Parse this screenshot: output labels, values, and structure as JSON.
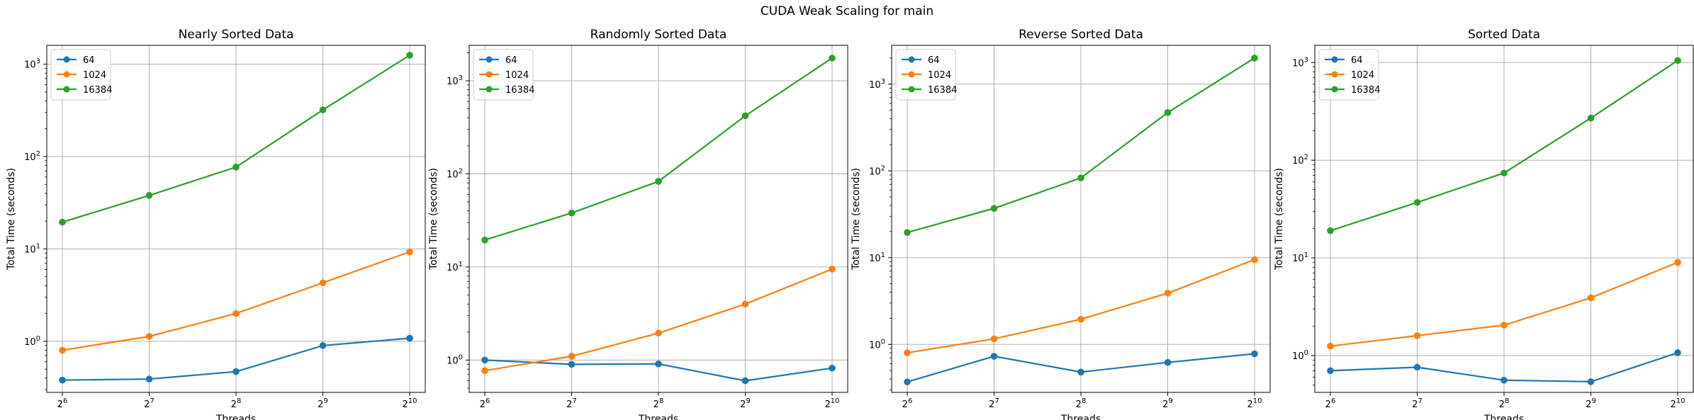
{
  "figure": {
    "suptitle": "CUDA Weak Scaling for main"
  },
  "chart_data": [
    {
      "type": "line",
      "title": "Nearly Sorted Data",
      "xlabel": "Threads",
      "ylabel": "Total Time (seconds)",
      "x_scale": "log2",
      "y_scale": "log10",
      "grid": true,
      "legend_position": "top-left",
      "x": [
        64,
        128,
        256,
        512,
        1024
      ],
      "x_tick_labels": [
        "2^6",
        "2^7",
        "2^8",
        "2^9",
        "2^10"
      ],
      "ylim": [
        0.28,
        1600
      ],
      "y_tick_labels": [
        "10^0",
        "10^1",
        "10^2",
        "10^3"
      ],
      "series": [
        {
          "name": "64",
          "color": "#1f77b4",
          "values": [
            0.38,
            0.39,
            0.47,
            0.9,
            1.08
          ]
        },
        {
          "name": "1024",
          "color": "#ff7f0e",
          "values": [
            0.8,
            1.13,
            2.0,
            4.3,
            9.3
          ]
        },
        {
          "name": "16384",
          "color": "#2ca02c",
          "values": [
            19.5,
            38,
            77,
            320,
            1250
          ]
        }
      ]
    },
    {
      "type": "line",
      "title": "Randomly Sorted Data",
      "xlabel": "Threads",
      "ylabel": "Total Time (seconds)",
      "x_scale": "log2",
      "y_scale": "log10",
      "grid": true,
      "legend_position": "top-left",
      "x": [
        64,
        128,
        256,
        512,
        1024
      ],
      "x_tick_labels": [
        "2^6",
        "2^7",
        "2^8",
        "2^9",
        "2^10"
      ],
      "ylim": [
        0.45,
        2400
      ],
      "y_tick_labels": [
        "10^0",
        "10^1",
        "10^2",
        "10^3"
      ],
      "series": [
        {
          "name": "64",
          "color": "#1f77b4",
          "values": [
            1.0,
            0.9,
            0.91,
            0.6,
            0.82
          ]
        },
        {
          "name": "1024",
          "color": "#ff7f0e",
          "values": [
            0.77,
            1.1,
            1.95,
            4.0,
            9.5
          ]
        },
        {
          "name": "16384",
          "color": "#2ca02c",
          "values": [
            19.5,
            38,
            83,
            420,
            1750
          ]
        }
      ]
    },
    {
      "type": "line",
      "title": "Reverse Sorted Data",
      "xlabel": "Threads",
      "ylabel": "Total Time (seconds)",
      "x_scale": "log2",
      "y_scale": "log10",
      "grid": true,
      "legend_position": "top-left",
      "x": [
        64,
        128,
        256,
        512,
        1024
      ],
      "x_tick_labels": [
        "2^6",
        "2^7",
        "2^8",
        "2^9",
        "2^10"
      ],
      "ylim": [
        0.28,
        2800
      ],
      "y_tick_labels": [
        "10^0",
        "10^1",
        "10^2",
        "10^3"
      ],
      "series": [
        {
          "name": "64",
          "color": "#1f77b4",
          "values": [
            0.37,
            0.73,
            0.48,
            0.62,
            0.78
          ]
        },
        {
          "name": "1024",
          "color": "#ff7f0e",
          "values": [
            0.8,
            1.16,
            1.95,
            3.9,
            9.5
          ]
        },
        {
          "name": "16384",
          "color": "#2ca02c",
          "values": [
            19.5,
            37,
            83,
            470,
            2000
          ]
        }
      ]
    },
    {
      "type": "line",
      "title": "Sorted Data",
      "xlabel": "Threads",
      "ylabel": "Total Time (seconds)",
      "x_scale": "log2",
      "y_scale": "log10",
      "grid": true,
      "legend_position": "top-left",
      "x": [
        64,
        128,
        256,
        512,
        1024
      ],
      "x_tick_labels": [
        "2^6",
        "2^7",
        "2^8",
        "2^9",
        "2^10"
      ],
      "ylim": [
        0.42,
        1500
      ],
      "y_tick_labels": [
        "10^0",
        "10^1",
        "10^2",
        "10^3"
      ],
      "series": [
        {
          "name": "64",
          "color": "#1f77b4",
          "values": [
            0.7,
            0.76,
            0.56,
            0.54,
            1.07
          ]
        },
        {
          "name": "1024",
          "color": "#ff7f0e",
          "values": [
            1.25,
            1.6,
            2.05,
            3.9,
            9.0
          ]
        },
        {
          "name": "16384",
          "color": "#2ca02c",
          "values": [
            19,
            37,
            74,
            270,
            1050
          ]
        }
      ]
    }
  ]
}
